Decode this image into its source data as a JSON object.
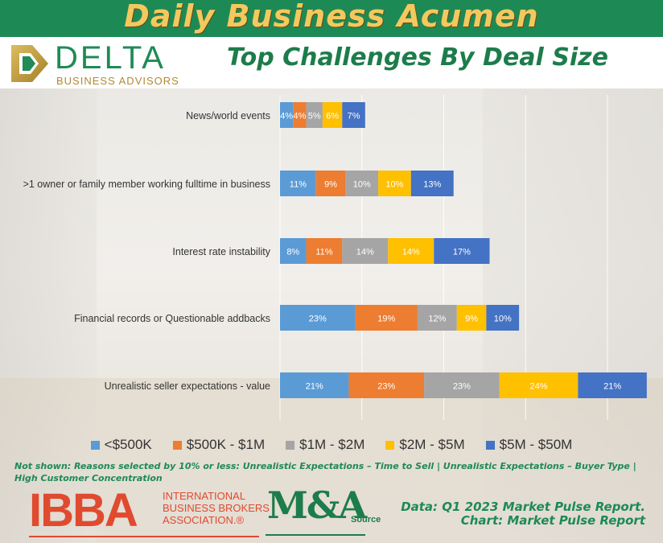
{
  "brand": {
    "banner_title": "Daily Business Acumen",
    "logo_word": "DELTA",
    "logo_sub": "BUSINESS ADVISORS"
  },
  "chart_data": {
    "type": "bar",
    "orientation": "horizontal",
    "stacked": true,
    "title": "Top Challenges By Deal Size",
    "xlabel": "",
    "ylabel": "",
    "legend_position": "bottom",
    "grid": true,
    "categories": [
      "News/world events",
      ">1 owner or family member working fulltime in business",
      "Interest rate instability",
      "Financial records or Questionable addbacks",
      "Unrealistic seller expectations - value"
    ],
    "series": [
      {
        "name": "<$500K",
        "color": "#5b9bd5",
        "values": [
          4,
          11,
          8,
          23,
          21
        ]
      },
      {
        "name": "$500K - $1M",
        "color": "#ed7d31",
        "values": [
          4,
          9,
          11,
          19,
          23
        ]
      },
      {
        "name": "$1M - $2M",
        "color": "#a5a5a5",
        "values": [
          5,
          10,
          14,
          12,
          23
        ]
      },
      {
        "name": "$2M - $5M",
        "color": "#ffc000",
        "values": [
          6,
          10,
          14,
          9,
          24
        ]
      },
      {
        "name": "$5M - $50M",
        "color": "#4472c4",
        "values": [
          7,
          13,
          17,
          10,
          21
        ]
      }
    ],
    "value_suffix": "%"
  },
  "note": "Not shown: Reasons selected by 10% or less: Unrealistic Expectations – Time to Sell | Unrealistic Expectations – Buyer Type | High Customer Concentration",
  "footer": {
    "ibba_mark": "IBBA",
    "ibba_lines": [
      "International",
      "Business Brokers",
      "Association.®"
    ],
    "ma_mark": "M&A",
    "ma_source": "Source",
    "source_line1": "Data: Q1 2023 Market Pulse Report.",
    "source_line2": "Chart: Market Pulse Report"
  }
}
